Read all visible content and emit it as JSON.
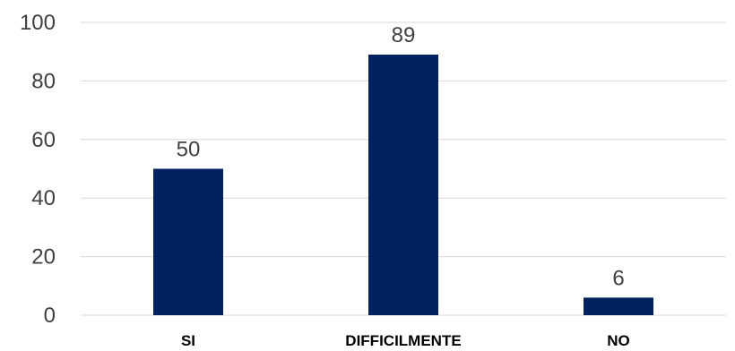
{
  "chart_data": {
    "type": "bar",
    "categories": [
      "SI",
      "DIFFICILMENTE",
      "NO"
    ],
    "values": [
      50,
      89,
      6
    ],
    "data_labels": [
      "50",
      "89",
      "6"
    ],
    "title": "",
    "xlabel": "",
    "ylabel": "",
    "ylim": [
      0,
      100
    ],
    "yticks": [
      0,
      20,
      40,
      60,
      80,
      100
    ],
    "grid": true,
    "legend": "none",
    "bar_color": "#002060"
  }
}
